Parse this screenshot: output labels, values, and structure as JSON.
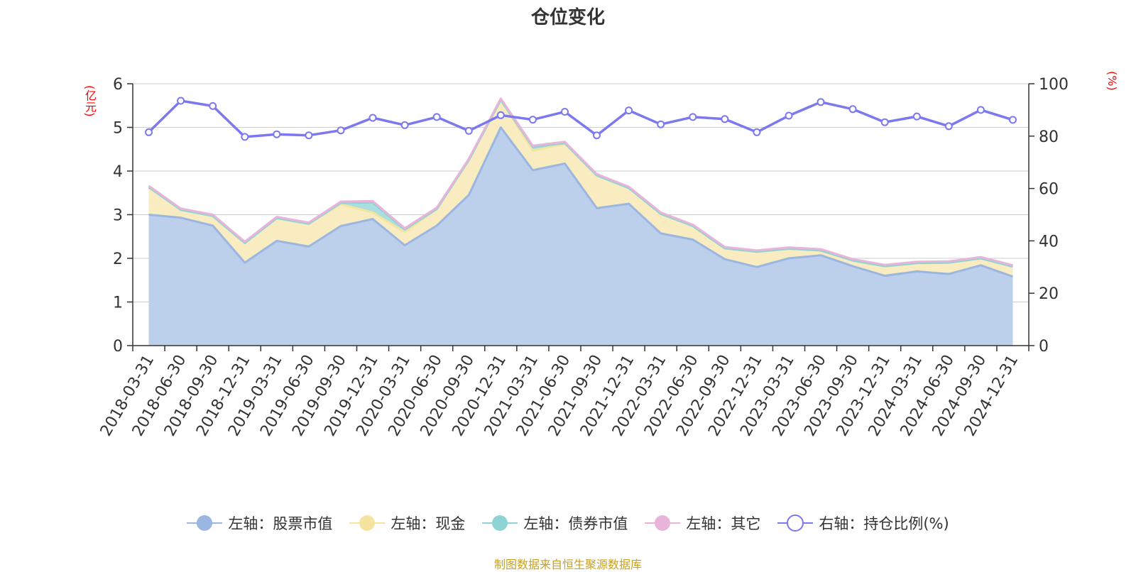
{
  "chart_data": {
    "type": "area",
    "title": "仓位变化",
    "left_axis_unit": "(亿元)",
    "right_axis_unit": "(%)",
    "ylim_left": [
      0,
      6
    ],
    "yticks_left": [
      "0",
      "1",
      "2",
      "3",
      "4",
      "5",
      "6"
    ],
    "ylim_right": [
      0,
      100
    ],
    "yticks_right": [
      "0",
      "20",
      "40",
      "60",
      "80",
      "100"
    ],
    "grid": true,
    "legend_position": "bottom",
    "categories": [
      "2018-03-31",
      "2018-06-30",
      "2018-09-30",
      "2018-12-31",
      "2019-03-31",
      "2019-06-30",
      "2019-09-30",
      "2019-12-31",
      "2020-03-31",
      "2020-06-30",
      "2020-09-30",
      "2020-12-31",
      "2021-03-31",
      "2021-06-30",
      "2021-09-30",
      "2021-12-31",
      "2022-03-31",
      "2022-06-30",
      "2022-09-30",
      "2022-12-31",
      "2023-03-31",
      "2023-06-30",
      "2023-09-30",
      "2023-12-31",
      "2024-03-31",
      "2024-06-30",
      "2024-09-30",
      "2024-12-31"
    ],
    "series": [
      {
        "name": "左轴：股票市值",
        "axis": "left",
        "stacked": true,
        "color": "#9bb6e0",
        "fill": "#b8ccea",
        "values": [
          3.0,
          2.93,
          2.75,
          1.9,
          2.4,
          2.27,
          2.74,
          2.9,
          2.3,
          2.75,
          3.45,
          5.0,
          4.02,
          4.17,
          3.15,
          3.25,
          2.57,
          2.43,
          1.98,
          1.8,
          2.0,
          2.07,
          1.82,
          1.6,
          1.7,
          1.64,
          1.84,
          1.58
        ]
      },
      {
        "name": "左轴：现金",
        "axis": "left",
        "stacked": true,
        "color": "#f5e4a0",
        "fill": "#f8ebbd",
        "values": [
          0.63,
          0.18,
          0.22,
          0.45,
          0.52,
          0.52,
          0.5,
          0.15,
          0.3,
          0.38,
          0.8,
          0.63,
          0.45,
          0.45,
          0.75,
          0.36,
          0.45,
          0.31,
          0.25,
          0.35,
          0.22,
          0.11,
          0.13,
          0.22,
          0.19,
          0.26,
          0.16,
          0.23
        ]
      },
      {
        "name": "左轴：债券市值",
        "axis": "left",
        "stacked": true,
        "color": "#8fd3d4",
        "fill": "#a6dcdc",
        "values": [
          0.0,
          0.0,
          0.0,
          0.0,
          0.0,
          0.0,
          0.03,
          0.23,
          0.06,
          0.0,
          0.0,
          0.0,
          0.08,
          0.02,
          0.0,
          0.0,
          0.0,
          0.0,
          0.0,
          0.0,
          0.0,
          0.0,
          0.0,
          0.0,
          0.0,
          0.0,
          0.0,
          0.0
        ]
      },
      {
        "name": "左轴：其它",
        "axis": "left",
        "stacked": true,
        "color": "#e8b4da",
        "fill": "#e8b4da",
        "values": [
          0.03,
          0.03,
          0.03,
          0.03,
          0.03,
          0.03,
          0.03,
          0.03,
          0.03,
          0.03,
          0.03,
          0.03,
          0.03,
          0.03,
          0.03,
          0.03,
          0.03,
          0.03,
          0.03,
          0.03,
          0.03,
          0.03,
          0.03,
          0.03,
          0.03,
          0.03,
          0.03,
          0.03
        ]
      },
      {
        "name": "右轴：持仓比例(%)",
        "axis": "right",
        "stacked": false,
        "color": "#7b78f0",
        "values": [
          81.5,
          93.5,
          91.5,
          79.7,
          80.7,
          80.3,
          82.2,
          87.0,
          84.2,
          87.3,
          82.0,
          88.0,
          86.3,
          89.3,
          80.3,
          89.8,
          84.5,
          87.3,
          86.5,
          81.5,
          87.8,
          93.0,
          90.3,
          85.3,
          87.5,
          83.8,
          90.0,
          86.2
        ]
      }
    ]
  },
  "footer": {
    "source": "制图数据来自恒生聚源数据库"
  }
}
